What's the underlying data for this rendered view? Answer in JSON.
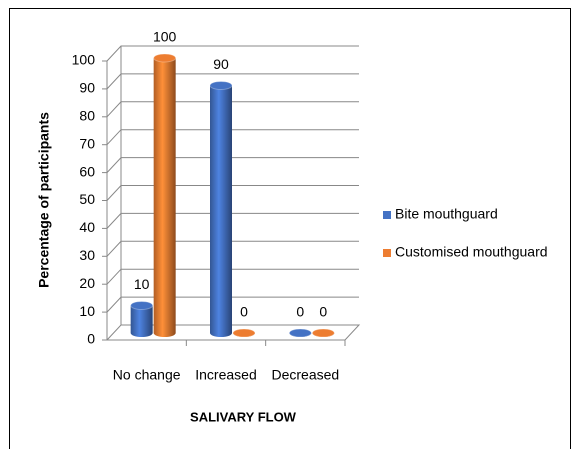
{
  "chart_data": {
    "type": "bar3d",
    "xlabel": "SALIVARY FLOW",
    "ylabel": "Percentage of participants",
    "categories": [
      "No change",
      "Increased",
      "Decreased"
    ],
    "series": [
      {
        "name": "Bite mouthguard",
        "color": "#4472c4",
        "values": [
          10,
          90,
          0
        ]
      },
      {
        "name": "Customised mouthguard",
        "color": "#ed7d31",
        "values": [
          100,
          0,
          0
        ]
      }
    ],
    "ylim": [
      0,
      100
    ],
    "yticks": [
      0,
      10,
      20,
      30,
      40,
      50,
      60,
      70,
      80,
      90,
      100
    ],
    "grid": true,
    "legend": "right"
  }
}
